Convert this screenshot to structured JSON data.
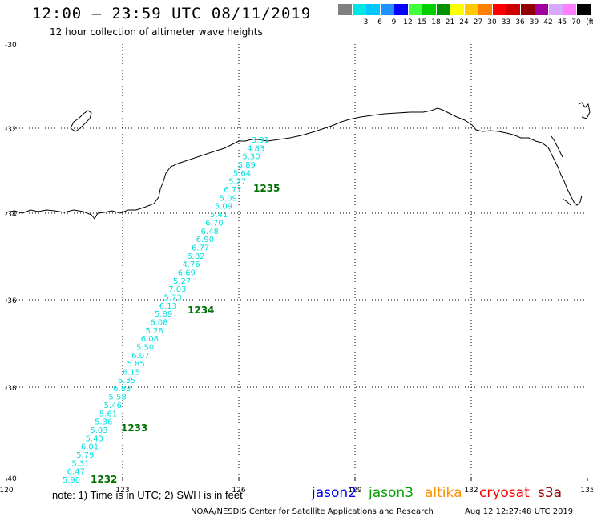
{
  "header": {
    "title": "12:00 – 23:59 UTC 08/11/2019",
    "subtitle": "12 hour collection of altimeter wave heights"
  },
  "legend": {
    "unit": "(ft)",
    "entries": [
      {
        "label": "",
        "color": "#808080"
      },
      {
        "label": "3",
        "color": "#00e5e5"
      },
      {
        "label": "6",
        "color": "#00c8ff"
      },
      {
        "label": "9",
        "color": "#1e90ff"
      },
      {
        "label": "12",
        "color": "#0000ff"
      },
      {
        "label": "15",
        "color": "#40ff40"
      },
      {
        "label": "18",
        "color": "#00d000"
      },
      {
        "label": "21",
        "color": "#009000"
      },
      {
        "label": "24",
        "color": "#ffff00"
      },
      {
        "label": "27",
        "color": "#ffc800"
      },
      {
        "label": "30",
        "color": "#ff8000"
      },
      {
        "label": "33",
        "color": "#ff0000"
      },
      {
        "label": "36",
        "color": "#d00000"
      },
      {
        "label": "39",
        "color": "#900000"
      },
      {
        "label": "42",
        "color": "#a000a0"
      },
      {
        "label": "45",
        "color": "#d8a8ff"
      },
      {
        "label": "70",
        "color": "#ff80ff"
      },
      {
        "label": "",
        "color": "#000000"
      }
    ]
  },
  "axes": {
    "lon_ticks": [
      "120",
      "123",
      "126",
      "129",
      "132",
      "135"
    ],
    "lat_ticks": [
      "-30",
      "-32",
      "-34",
      "-36",
      "-38",
      "-40"
    ]
  },
  "track": {
    "color": "#00e0e0",
    "swh_values": [
      "5.90",
      "6.47",
      "5.31",
      "5.79",
      "6.01",
      "5.43",
      "5.03",
      "5.36",
      "5.61",
      "5.46",
      "5.58",
      "6.83",
      "6.35",
      "6.15",
      "5.85",
      "6.07",
      "5.50",
      "6.08",
      "5.28",
      "6.08",
      "5.89",
      "6.13",
      "5.73",
      "7.03",
      "5.27",
      "6.69",
      "4.76",
      "6.82",
      "6.77",
      "6.90",
      "6.48",
      "6.70",
      "5.41",
      "5.09",
      "5.09",
      "6.77",
      "5.27",
      "5.64",
      "5.89",
      "5.30",
      "4.83",
      "3.91"
    ],
    "time_labels": [
      {
        "text": "1232",
        "color": "#007000"
      },
      {
        "text": "1233",
        "color": "#007000"
      },
      {
        "text": "1234",
        "color": "#007000"
      },
      {
        "text": "1235",
        "color": "#007000"
      }
    ]
  },
  "footer": {
    "note": "note: 1) Time is in UTC; 2) SWH is in feet",
    "satellites": [
      {
        "name": "jason2",
        "color": "#0000ff"
      },
      {
        "name": "jason3",
        "color": "#00a000"
      },
      {
        "name": "altika",
        "color": "#ff9000"
      },
      {
        "name": "cryosat",
        "color": "#ff0000"
      },
      {
        "name": "s3a",
        "color": "#990000"
      }
    ],
    "credit": "NOAA/NESDIS Center for Satellite Applications and Research",
    "timestamp": "Aug 12 12:27:48 UTC 2019"
  }
}
